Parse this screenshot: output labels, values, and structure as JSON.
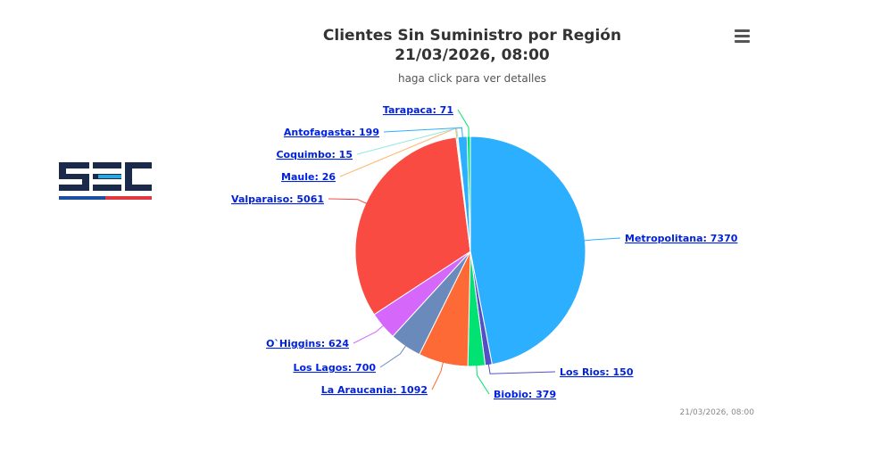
{
  "chart_data": {
    "type": "pie",
    "title": "Clientes Sin Suministro por Región",
    "title_line2": "21/03/2026, 08:00",
    "subtitle": "haga click para ver detalles",
    "credit": "21/03/2026, 08:00",
    "values": [
      7370,
      150,
      379,
      1092,
      700,
      624,
      5061,
      26,
      15,
      199,
      71
    ],
    "value_labels": [
      "Metropolitana: 7370",
      "Los Rios: 150",
      "Biobio: 379",
      "La Araucania: 1092",
      "Los Lagos: 700",
      "O`Higgins: 624",
      "Valparaiso: 5061",
      "Maule: 26",
      "Coquimbo: 15",
      "Antofagasta: 199",
      "Tarapaca: 71"
    ],
    "colors": [
      "#2caffe",
      "#544fc5",
      "#00e272",
      "#fe6a35",
      "#6b8abc",
      "#d568fb",
      "#fa4b42",
      "#feb56a",
      "#91e8e1",
      "#2caffe",
      "#00e272"
    ]
  }
}
